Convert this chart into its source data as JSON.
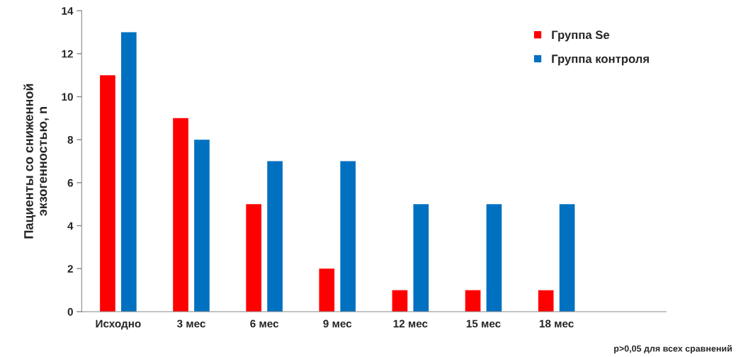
{
  "chart_data": {
    "type": "bar",
    "ylabel": "Пациенты со сниженной\nэкзогенностью, n",
    "categories": [
      "Исходно",
      "3 мес",
      "6 мес",
      "9 мес",
      "12 мес",
      "15 мес",
      "18 мес",
      null
    ],
    "series": [
      {
        "name": "Группа Se",
        "color": "#ff0000",
        "values": [
          11,
          9,
          5,
          2,
          1,
          1,
          1,
          null
        ]
      },
      {
        "name": "Группа контроля",
        "color": "#0070c0",
        "values": [
          13,
          8,
          7,
          7,
          5,
          5,
          5,
          null
        ]
      }
    ],
    "ylim": [
      0,
      14
    ],
    "yticks": [
      0,
      2,
      4,
      6,
      8,
      10,
      12,
      14
    ],
    "grid": false,
    "legend": "top right",
    "annotations": [
      "p>0,05 для всех сравнений"
    ]
  }
}
